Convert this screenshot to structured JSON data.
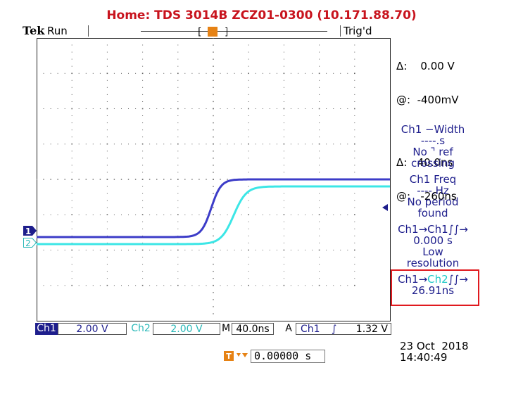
{
  "header": {
    "title": "Home:  TDS 3014B  ZCZ01-0300  (10.171.88.70)",
    "brand": "Tek",
    "run_state": "Run",
    "trigger_state": "Trig'd",
    "trigger_marker": "T"
  },
  "cursors": {
    "v_delta": "Δ:    0.00 V",
    "v_at": "@:  -400mV",
    "t_delta": "Δ:   40.0ns",
    "t_at": "@:   -260ns"
  },
  "measurements": {
    "m1_title": "Ch1 −Width",
    "m1_value": "----.s",
    "m1_note1": "No ⌝ ref",
    "m1_note2": "crossing",
    "m2_title": "Ch1 Freq",
    "m2_value": "----.Hz",
    "m2_note1": "No period",
    "m2_note2": "found",
    "m3_title": "Ch1→Ch1∫∫→",
    "m3_value": "0.000 s",
    "m3_note1": "Low",
    "m3_note2": "resolution",
    "m4_prefix": "Ch1→",
    "m4_ch": "Ch2",
    "m4_suffix": "∫∫→",
    "m4_value": "26.91ns"
  },
  "channel_markers": {
    "ch1": "1",
    "ch2": "2"
  },
  "status_bar": {
    "ch1_label": "Ch1",
    "ch1_scale": "2.00 V",
    "ch2_label": "Ch2",
    "ch2_scale": "2.00 V",
    "timebase_label": "M",
    "timebase": "40.0ns",
    "trigger_label": "A",
    "trigger_source": "Ch1",
    "trigger_slope": "∫",
    "trigger_level": "1.32 V"
  },
  "footer": {
    "horiz_position": "0.00000 s",
    "date": "23 Oct  2018",
    "time": "14:40:49"
  },
  "colors": {
    "title": "#c8141e",
    "ch1": "#3c3cc8",
    "ch2": "#3ce6e6",
    "trigger": "#e68214",
    "highlight_box": "#e0191e"
  }
}
